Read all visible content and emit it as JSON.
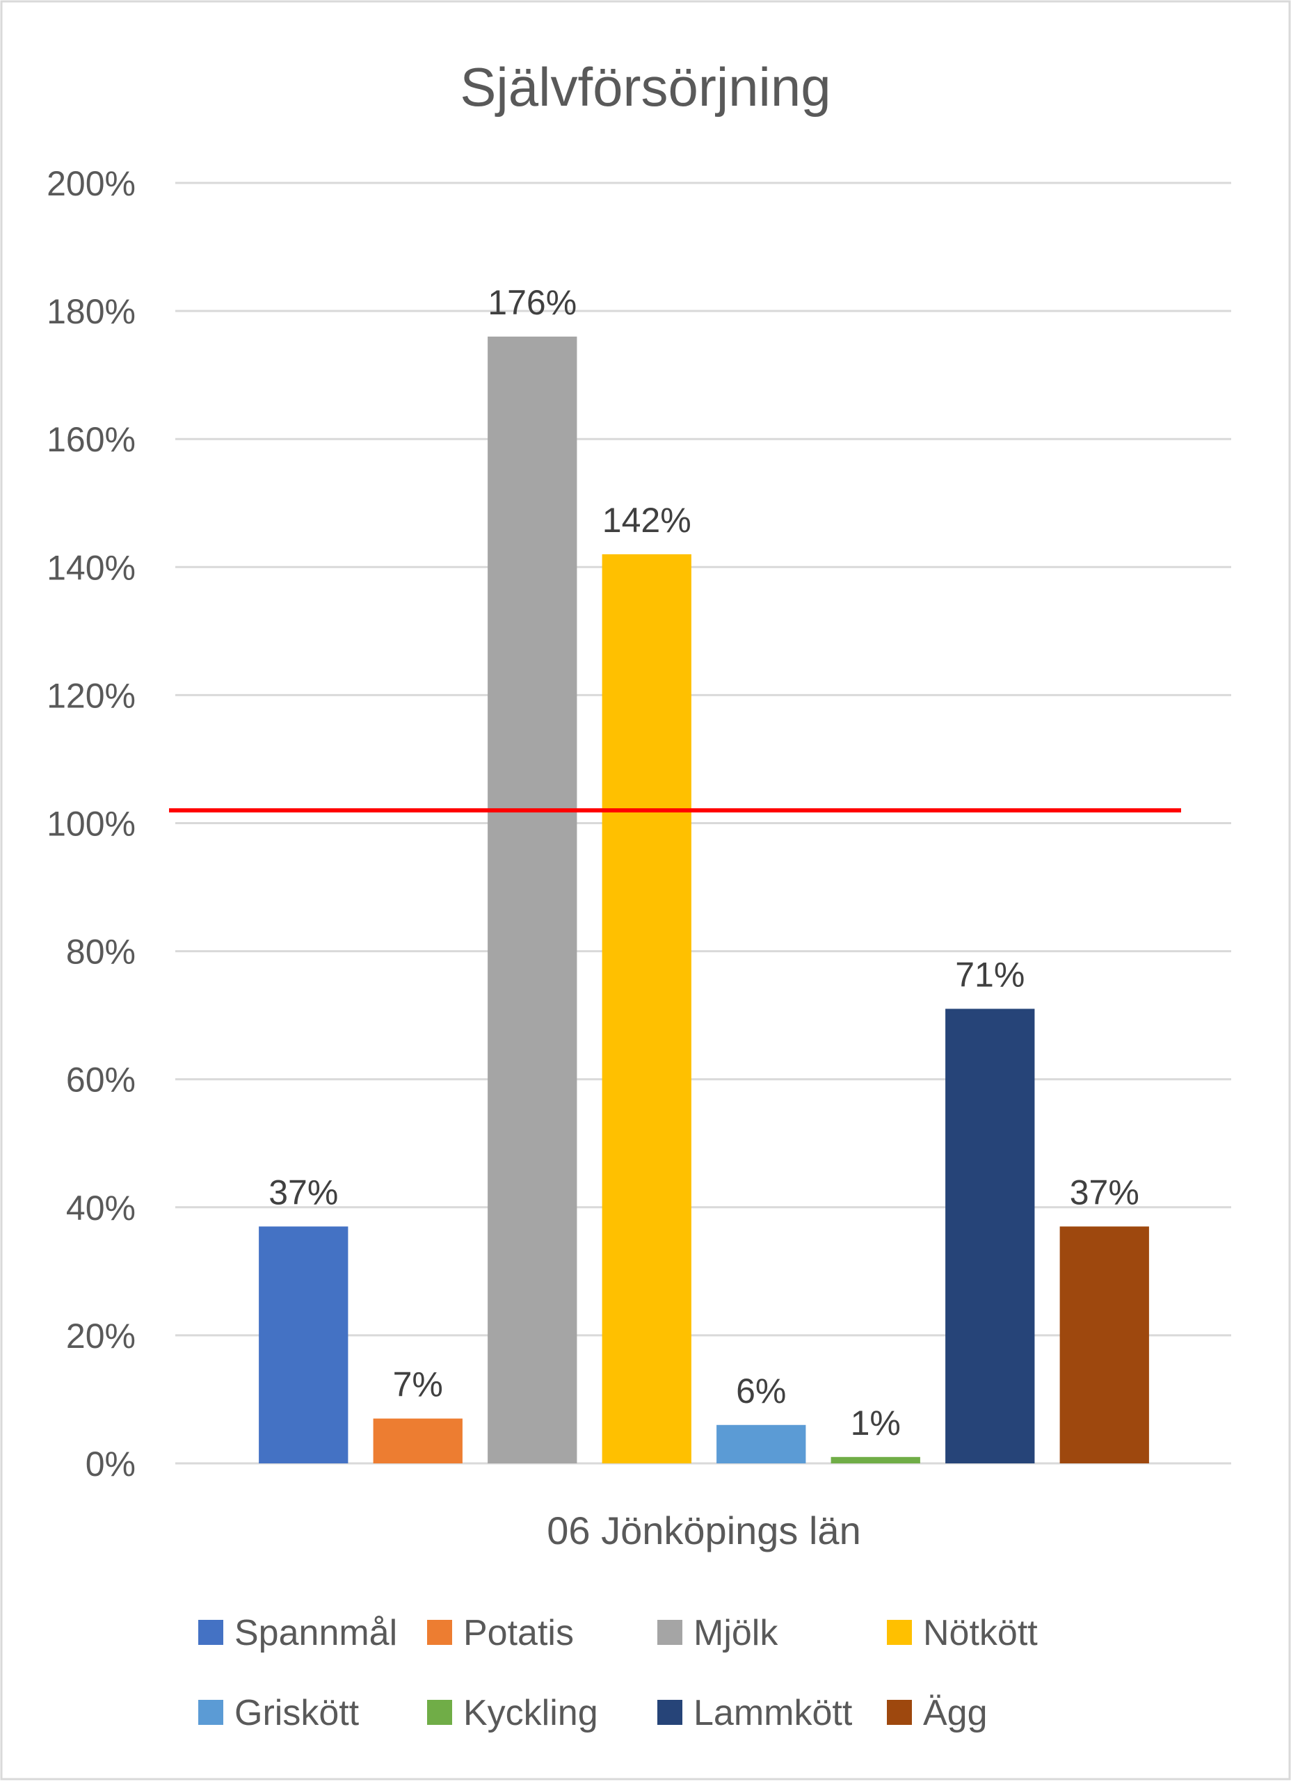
{
  "chart_data": {
    "type": "bar",
    "title": "Självförsörjning",
    "xlabel": "06 Jönköpings län",
    "ylabel": "",
    "ylim": [
      0,
      2.0
    ],
    "y_ticks": [
      "0%",
      "20%",
      "40%",
      "60%",
      "80%",
      "100%",
      "120%",
      "140%",
      "160%",
      "180%",
      "200%"
    ],
    "y_tick_values": [
      0,
      0.2,
      0.4,
      0.6,
      0.8,
      1.0,
      1.2,
      1.4,
      1.6,
      1.8,
      2.0
    ],
    "grid": true,
    "legend_position": "bottom",
    "reference_line": {
      "value": 1.02,
      "color": "#FF0000"
    },
    "series": [
      {
        "name": "Spannmål",
        "value": 0.37,
        "label": "37%",
        "color": "#4472C4"
      },
      {
        "name": "Potatis",
        "value": 0.07,
        "label": "7%",
        "color": "#ED7D31"
      },
      {
        "name": "Mjölk",
        "value": 1.76,
        "label": "176%",
        "color": "#A5A5A5"
      },
      {
        "name": "Nötkött",
        "value": 1.42,
        "label": "142%",
        "color": "#FFC000"
      },
      {
        "name": "Griskött",
        "value": 0.06,
        "label": "6%",
        "color": "#5B9BD5"
      },
      {
        "name": "Kyckling",
        "value": 0.01,
        "label": "1%",
        "color": "#70AD47"
      },
      {
        "name": "Lammkött",
        "value": 0.71,
        "label": "71%",
        "color": "#264478"
      },
      {
        "name": "Ägg",
        "value": 0.37,
        "label": "37%",
        "color": "#9E480E"
      }
    ]
  }
}
